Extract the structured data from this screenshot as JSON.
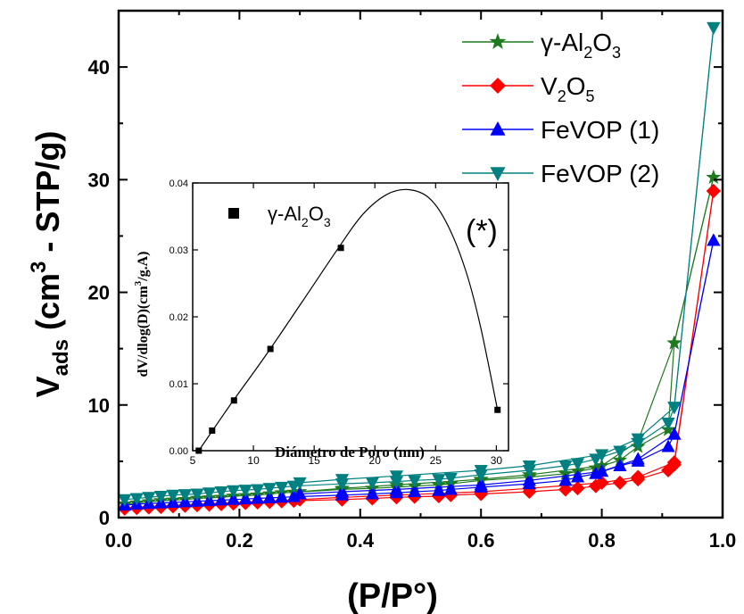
{
  "chart_data": [
    {
      "type": "line",
      "xlabel": "(P/P°)",
      "ylabel": {
        "main": "V",
        "sub": "ads",
        "rest1": " (cm",
        "sup": "3",
        "rest2": " - STP/g)"
      },
      "xlim": [
        0.0,
        1.0
      ],
      "ylim": [
        0,
        45
      ],
      "xticks": [
        "0.0",
        "0.2",
        "0.4",
        "0.6",
        "0.8",
        "1.0"
      ],
      "yticks": [
        "0",
        "10",
        "20",
        "30",
        "40"
      ],
      "xtick_values": [
        0.0,
        0.2,
        0.4,
        0.6,
        0.8,
        1.0
      ],
      "ytick_values": [
        0,
        10,
        20,
        30,
        40
      ],
      "legend_position": "top-right",
      "series": [
        {
          "name_parts": {
            "t1": "γ-Al",
            "s1": "2",
            "t2": "O",
            "s2": "3",
            "t3": ""
          },
          "color": "#1f7a1f",
          "marker": "star",
          "adsorption": {
            "x": [
              0.01,
              0.03,
              0.05,
              0.07,
              0.09,
              0.11,
              0.13,
              0.15,
              0.17,
              0.19,
              0.21,
              0.23,
              0.25,
              0.27,
              0.29,
              0.37,
              0.42,
              0.46,
              0.49,
              0.53,
              0.55,
              0.6,
              0.68,
              0.74,
              0.76,
              0.79,
              0.83,
              0.86,
              0.91,
              0.92,
              0.985
            ],
            "y": [
              1.2,
              1.3,
              1.4,
              1.5,
              1.55,
              1.6,
              1.7,
              1.75,
              1.8,
              1.9,
              1.95,
              2.0,
              2.1,
              2.2,
              2.25,
              2.5,
              2.6,
              2.7,
              2.8,
              2.9,
              3.0,
              3.3,
              3.6,
              3.9,
              4.1,
              4.4,
              5.1,
              6.3,
              7.8,
              15.5,
              30.2
            ]
          },
          "desorption": {
            "x": [
              0.985,
              0.92,
              0.86,
              0.8,
              0.68,
              0.6,
              0.46,
              0.37,
              0.3
            ],
            "y": [
              30.2,
              15.5,
              6.8,
              4.6,
              3.8,
              3.4,
              2.9,
              2.6,
              2.3
            ]
          }
        },
        {
          "name_parts": {
            "t1": "V",
            "s1": "2",
            "t2": "O",
            "s2": "5",
            "t3": ""
          },
          "color": "#ff0000",
          "marker": "diamond",
          "adsorption": {
            "x": [
              0.01,
              0.03,
              0.05,
              0.07,
              0.09,
              0.11,
              0.13,
              0.15,
              0.17,
              0.19,
              0.21,
              0.23,
              0.25,
              0.27,
              0.29,
              0.37,
              0.42,
              0.46,
              0.49,
              0.53,
              0.55,
              0.6,
              0.68,
              0.74,
              0.76,
              0.79,
              0.83,
              0.86,
              0.91,
              0.92,
              0.985
            ],
            "y": [
              0.8,
              0.85,
              0.9,
              0.95,
              1.0,
              1.05,
              1.1,
              1.15,
              1.2,
              1.25,
              1.3,
              1.35,
              1.4,
              1.45,
              1.5,
              1.6,
              1.7,
              1.8,
              1.85,
              1.9,
              2.0,
              2.1,
              2.3,
              2.5,
              2.6,
              2.8,
              3.1,
              3.4,
              4.2,
              4.7,
              29.0
            ]
          },
          "desorption": {
            "x": [
              0.985,
              0.92,
              0.86,
              0.8,
              0.68,
              0.6,
              0.46,
              0.37,
              0.3
            ],
            "y": [
              29.0,
              4.9,
              3.6,
              3.1,
              2.6,
              2.3,
              2.0,
              1.8,
              1.6
            ]
          }
        },
        {
          "name_parts": {
            "t1": "FeVOP",
            "s1": "",
            "t2": " (1)",
            "s2": "",
            "t3": ""
          },
          "color": "#0000ff",
          "marker": "triangle-up",
          "adsorption": {
            "x": [
              0.01,
              0.03,
              0.05,
              0.07,
              0.09,
              0.11,
              0.13,
              0.15,
              0.17,
              0.19,
              0.21,
              0.23,
              0.25,
              0.27,
              0.29,
              0.37,
              0.42,
              0.46,
              0.49,
              0.53,
              0.55,
              0.6,
              0.68,
              0.74,
              0.76,
              0.79,
              0.83,
              0.86,
              0.91,
              0.92,
              0.985
            ],
            "y": [
              1.1,
              1.2,
              1.25,
              1.3,
              1.35,
              1.4,
              1.45,
              1.5,
              1.55,
              1.6,
              1.65,
              1.7,
              1.75,
              1.8,
              1.85,
              2.0,
              2.1,
              2.2,
              2.3,
              2.4,
              2.5,
              2.7,
              3.0,
              3.3,
              3.6,
              3.9,
              4.6,
              5.0,
              6.3,
              7.4,
              24.6
            ]
          },
          "desorption": {
            "x": [
              0.985,
              0.92,
              0.86,
              0.8,
              0.68,
              0.6,
              0.46,
              0.37,
              0.3
            ],
            "y": [
              24.6,
              7.4,
              5.2,
              4.1,
              3.3,
              2.9,
              2.5,
              2.3,
              2.1
            ]
          }
        },
        {
          "name_parts": {
            "t1": "FeVOP",
            "s1": "",
            "t2": " (2)",
            "s2": "",
            "t3": ""
          },
          "color": "#008080",
          "marker": "triangle-down",
          "adsorption": {
            "x": [
              0.01,
              0.03,
              0.05,
              0.07,
              0.09,
              0.11,
              0.13,
              0.15,
              0.17,
              0.19,
              0.21,
              0.23,
              0.25,
              0.27,
              0.29,
              0.37,
              0.42,
              0.46,
              0.49,
              0.53,
              0.55,
              0.6,
              0.68,
              0.74,
              0.76,
              0.79,
              0.83,
              0.86,
              0.91,
              0.92,
              0.985
            ],
            "y": [
              1.6,
              1.7,
              1.8,
              1.9,
              2.0,
              2.05,
              2.1,
              2.2,
              2.3,
              2.4,
              2.45,
              2.5,
              2.6,
              2.7,
              2.8,
              3.0,
              3.1,
              3.2,
              3.3,
              3.4,
              3.5,
              3.8,
              4.2,
              4.6,
              4.8,
              5.2,
              5.9,
              6.6,
              8.4,
              9.8,
              43.5
            ]
          },
          "desorption": {
            "x": [
              0.985,
              0.92,
              0.86,
              0.8,
              0.68,
              0.6,
              0.46,
              0.37,
              0.3
            ],
            "y": [
              43.5,
              9.8,
              7.0,
              5.6,
              4.6,
              4.2,
              3.7,
              3.4,
              3.1
            ]
          }
        }
      ]
    },
    {
      "type": "scatter",
      "inset": true,
      "xlabel": "Diámetro de Poro (nm)",
      "ylabel": {
        "t1": "dV/dlog(D)(cm",
        "sup": "3",
        "t2": "/g.A)"
      },
      "annotation": "(*)",
      "xlim": [
        5,
        31
      ],
      "ylim": [
        0,
        0.04
      ],
      "xticks": [
        "5",
        "10",
        "15",
        "20",
        "25",
        "30"
      ],
      "yticks": [
        "0.00",
        "0.01",
        "0.02",
        "0.03",
        "0.04"
      ],
      "xtick_values": [
        5,
        10,
        15,
        20,
        25,
        30
      ],
      "ytick_values": [
        0,
        0.01,
        0.02,
        0.03,
        0.04
      ],
      "series": [
        {
          "name_parts": {
            "t1": "γ-Al",
            "s1": "2",
            "t2": "O",
            "s2": "3",
            "t3": ""
          },
          "color": "#000000",
          "marker": "square",
          "x": [
            5.5,
            6.6,
            8.4,
            11.4,
            17.2,
            30.1
          ],
          "y": [
            0.0,
            0.003,
            0.0075,
            0.0152,
            0.0303,
            0.0061
          ]
        }
      ],
      "fit_curve": {
        "x": [
          5.5,
          8,
          11,
          14,
          17,
          19,
          21,
          22.8,
          24.5,
          26,
          27.5,
          28.7,
          30.1
        ],
        "y": [
          0.0,
          0.0066,
          0.0142,
          0.0222,
          0.0303,
          0.0353,
          0.0383,
          0.039,
          0.0377,
          0.0337,
          0.0268,
          0.0185,
          0.0061
        ]
      }
    }
  ]
}
